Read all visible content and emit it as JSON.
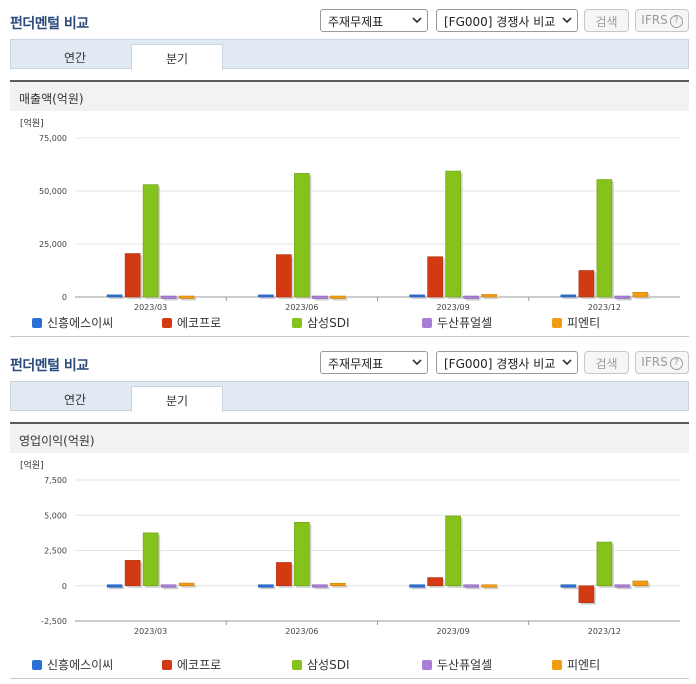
{
  "panels": [
    {
      "title": "펀더멘털 비교",
      "select_statement": "주재무제표",
      "select_compare": "[FG000] 경쟁사 비교",
      "search_label": "검색",
      "ifrs_label": "IFRS",
      "help_symbol": "?",
      "tabs": [
        {
          "label": "연간"
        },
        {
          "label": "분기",
          "active": true
        }
      ],
      "chart_title": "매출액(억원)",
      "chart_data": {
        "type": "bar",
        "unit": "[억원]",
        "categories": [
          "2023/03",
          "2023/06",
          "2023/09",
          "2023/12"
        ],
        "yticks": [
          "75,000",
          "50,000",
          "25,000",
          "0"
        ],
        "ylim": [
          0,
          75000
        ],
        "tick_values": [
          75000,
          50000,
          25000,
          0
        ],
        "grid": true,
        "legend": "bottom",
        "series": [
          {
            "name": "신흥에스이씨",
            "color": "#2a6fd6",
            "values": [
              1000,
              1000,
              1000,
              1000
            ]
          },
          {
            "name": "에코프로",
            "color": "#d43a12",
            "values": [
              20500,
              20000,
              19000,
              12500
            ]
          },
          {
            "name": "삼성SDI",
            "color": "#86c21c",
            "values": [
              53000,
              58300,
              59400,
              55400
            ]
          },
          {
            "name": "두산퓨얼셀",
            "color": "#a97ed6",
            "values": [
              300,
              300,
              300,
              700
            ]
          },
          {
            "name": "피엔티",
            "color": "#f39c12",
            "values": [
              800,
              800,
              1200,
              2200
            ]
          }
        ]
      }
    },
    {
      "title": "펀더멘털 비교",
      "select_statement": "주재무제표",
      "select_compare": "[FG000] 경쟁사 비교",
      "search_label": "검색",
      "ifrs_label": "IFRS",
      "help_symbol": "?",
      "tabs": [
        {
          "label": "연간"
        },
        {
          "label": "분기",
          "active": true
        }
      ],
      "chart_title": "영업이익(억원)",
      "chart_data": {
        "type": "bar",
        "unit": "[억원]",
        "categories": [
          "2023/03",
          "2023/06",
          "2023/09",
          "2023/12"
        ],
        "yticks": [
          "7,500",
          "5,000",
          "2,500",
          "0",
          "-2,500"
        ],
        "ylim": [
          -2500,
          7500
        ],
        "tick_values": [
          7500,
          5000,
          2500,
          0,
          -2500
        ],
        "grid": true,
        "legend": "bottom",
        "series": [
          {
            "name": "신흥에스이씨",
            "color": "#2a6fd6",
            "values": [
              -60,
              90,
              90,
              110
            ]
          },
          {
            "name": "에코프로",
            "color": "#d43a12",
            "values": [
              1800,
              1650,
              580,
              -1200
            ]
          },
          {
            "name": "삼성SDI",
            "color": "#86c21c",
            "values": [
              3750,
              4500,
              4950,
              3100
            ]
          },
          {
            "name": "두산퓨얼셀",
            "color": "#a97ed6",
            "values": [
              -60,
              -30,
              -20,
              -30
            ]
          },
          {
            "name": "피엔티",
            "color": "#f39c12",
            "values": [
              190,
              180,
              -80,
              340
            ]
          }
        ]
      }
    }
  ]
}
